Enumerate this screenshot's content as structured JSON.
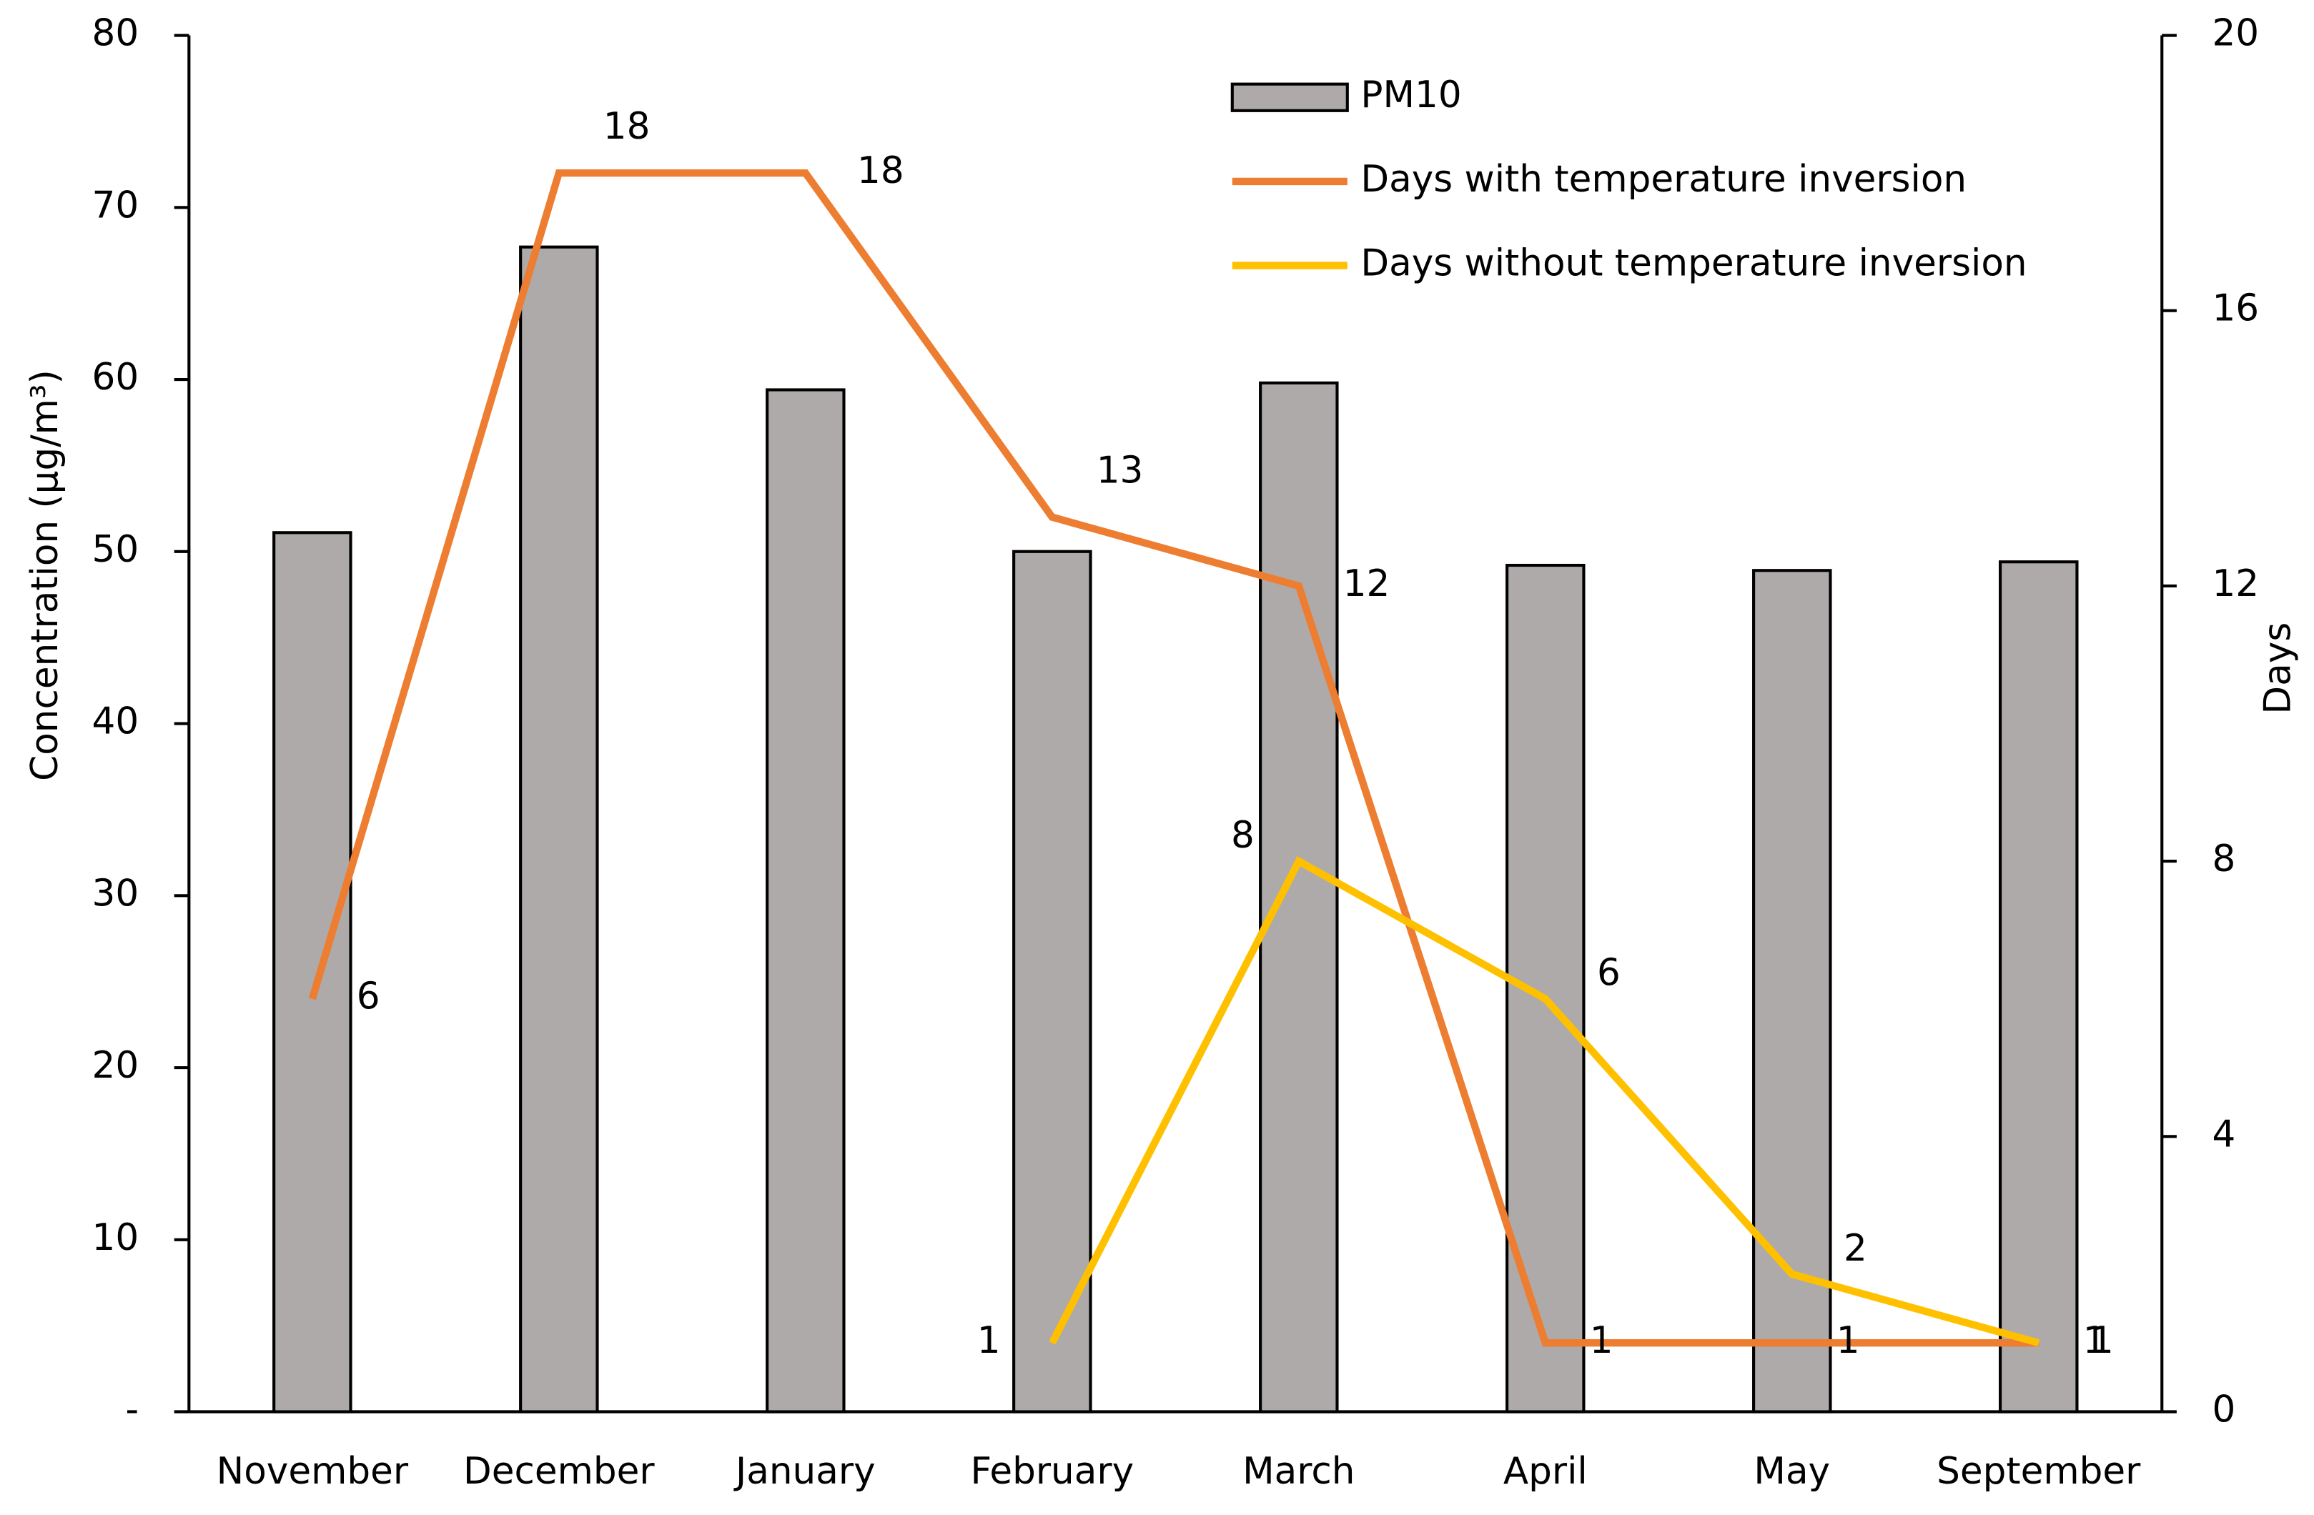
{
  "chart_data": {
    "type": "bar-line",
    "y_label": "Concentration (µg/m³)",
    "y2_label": "Days",
    "categories": [
      "November",
      "December",
      "January",
      "February",
      "March",
      "April",
      "May",
      "September"
    ],
    "series": [
      {
        "name": "PM10",
        "type": "bar",
        "color": "#aeaaaa",
        "values": [
          51.1,
          67.7,
          59.4,
          50.0,
          59.8,
          49.2,
          48.9,
          49.4
        ]
      },
      {
        "name": "Days with temperature inversion",
        "type": "line",
        "axis": "y2",
        "color": "#ed7d31",
        "values": [
          6,
          18,
          18,
          13,
          12,
          1,
          1,
          1
        ]
      },
      {
        "name": "Days without temperature inversion",
        "type": "line",
        "axis": "y2",
        "color": "#ffc000",
        "values": [
          null,
          null,
          null,
          1,
          8,
          6,
          2,
          1
        ]
      }
    ],
    "ylim": [
      0,
      80
    ],
    "yticks": [
      {
        "value": 0,
        "label": "-"
      },
      10,
      20,
      30,
      40,
      50,
      60,
      70,
      80
    ],
    "y2lim": [
      0,
      20
    ],
    "y2ticks": [
      0,
      4,
      8,
      12,
      16,
      20
    ],
    "legend": "top"
  }
}
